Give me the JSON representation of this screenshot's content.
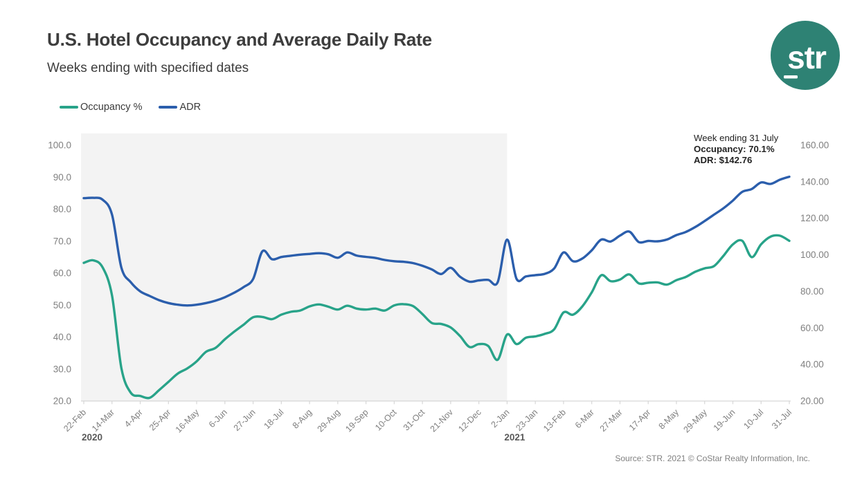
{
  "header": {
    "title": "U.S. Hotel Occupancy and Average Daily Rate",
    "subtitle": "Weeks ending with specified dates"
  },
  "logo": {
    "text": "str",
    "color": "#2E8274"
  },
  "legend": [
    {
      "label": "Occupancy %",
      "color": "#28A389"
    },
    {
      "label": "ADR",
      "color": "#2B5EAC"
    }
  ],
  "annotation": {
    "line1": "Week ending 31 July",
    "line2": "Occupancy: 70.1%",
    "line3": "ADR: $142.76"
  },
  "source": "Source: STR. 2021 © CoStar Realty Information, Inc.",
  "colors": {
    "occupancy_line": "#28A389",
    "adr_line": "#2B5EAC",
    "shaded_band": "#f3f3f3",
    "axis_line": "#d6d6d6",
    "axis_text": "#7f7f7f",
    "year_text": "#595959"
  },
  "chart_data": {
    "type": "line",
    "title": "U.S. Hotel Occupancy and Average Daily Rate",
    "subtitle": "Weeks ending with specified dates",
    "x_frequency": "weekly",
    "weeks_per_tick": 3,
    "x_tick_labels": [
      "22-Feb",
      "14-Mar",
      "4-Apr",
      "25-Apr",
      "16-May",
      "6-Jun",
      "27-Jun",
      "18-Jul",
      "8-Aug",
      "29-Aug",
      "19-Sep",
      "10-Oct",
      "31-Oct",
      "21-Nov",
      "12-Dec",
      "2-Jan",
      "23-Jan",
      "13-Feb",
      "6-Mar",
      "27-Mar",
      "17-Apr",
      "8-May",
      "29-May",
      "19-Jun",
      "10-Jul",
      "31-Jul"
    ],
    "year_labels": [
      "2020",
      "2021"
    ],
    "shaded_region_note": "gray band covers 2020 weeks (22-Feb-2020 through 2-Jan-2021 tick)",
    "left_axis": {
      "label": "Occupancy %",
      "ticks": [
        "100.0",
        "90.0",
        "80.0",
        "70.0",
        "60.0",
        "50.0",
        "40.0",
        "30.0",
        "20.0"
      ],
      "min": 20,
      "max": 100
    },
    "right_axis": {
      "label": "ADR",
      "ticks": [
        "160.00",
        "140.00",
        "120.00",
        "100.00",
        "80.00",
        "60.00",
        "40.00",
        "20.00"
      ],
      "min": 20,
      "max": 160
    },
    "series": [
      {
        "name": "Occupancy %",
        "axis": "left",
        "color": "#28A389",
        "values": [
          63.2,
          64.0,
          61.8,
          53.0,
          30.3,
          22.6,
          21.6,
          21.0,
          23.4,
          26.0,
          28.6,
          30.2,
          32.4,
          35.4,
          36.6,
          39.3,
          41.7,
          43.9,
          46.2,
          46.3,
          45.6,
          47.0,
          47.9,
          48.3,
          49.6,
          50.2,
          49.5,
          48.6,
          49.8,
          48.9,
          48.6,
          48.9,
          48.3,
          49.9,
          50.3,
          49.7,
          47.2,
          44.4,
          44.1,
          43.0,
          40.3,
          36.9,
          37.8,
          37.2,
          32.9,
          40.8,
          37.8,
          39.8,
          40.2,
          41.0,
          42.4,
          47.7,
          47.0,
          49.6,
          54.0,
          59.3,
          57.5,
          58.0,
          59.6,
          56.8,
          57.0,
          57.1,
          56.4,
          57.8,
          58.8,
          60.4,
          61.5,
          62.2,
          65.4,
          69.0,
          70.1,
          65.0,
          69.0,
          71.4,
          71.7,
          70.1
        ]
      },
      {
        "name": "ADR",
        "axis": "right",
        "color": "#2B5EAC",
        "values": [
          131.0,
          131.2,
          130.2,
          122.0,
          93.0,
          85.0,
          80.0,
          77.5,
          75.2,
          73.6,
          72.7,
          72.3,
          72.7,
          73.6,
          74.9,
          76.8,
          79.3,
          82.4,
          86.8,
          102.0,
          97.6,
          98.8,
          99.5,
          100.1,
          100.5,
          100.9,
          100.3,
          98.4,
          101.3,
          99.6,
          98.9,
          98.3,
          97.2,
          96.5,
          96.2,
          95.5,
          94.0,
          92.0,
          89.5,
          92.9,
          88.0,
          85.3,
          86.0,
          86.3,
          85.0,
          108.3,
          86.9,
          88.2,
          88.9,
          89.6,
          92.5,
          101.3,
          96.5,
          98.0,
          102.5,
          108.3,
          107.3,
          110.5,
          112.7,
          107.0,
          107.6,
          107.4,
          108.4,
          110.8,
          112.5,
          115.2,
          118.5,
          122.0,
          125.5,
          129.7,
          134.5,
          136.0,
          139.6,
          138.8,
          141.1,
          142.76
        ]
      }
    ],
    "last_point": {
      "week": "31 July",
      "occupancy": 70.1,
      "adr": 142.76
    }
  }
}
